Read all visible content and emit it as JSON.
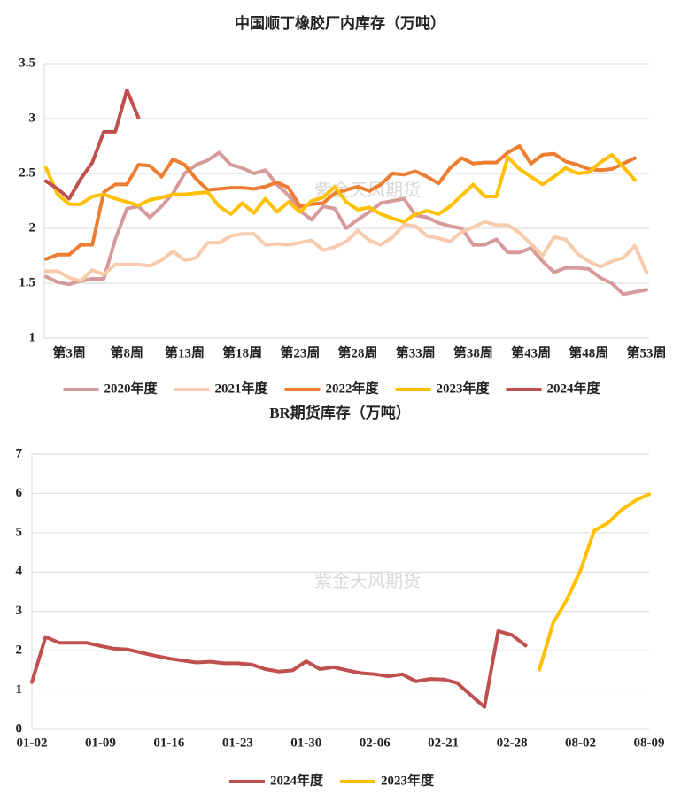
{
  "chart_data": [
    {
      "type": "line",
      "title": "中国顺丁橡胶厂内库存（万吨）",
      "watermark": "紫金天风期货",
      "categories": [
        null,
        null,
        "第3周",
        null,
        null,
        null,
        null,
        "第8周",
        null,
        null,
        null,
        null,
        "第13周",
        null,
        null,
        null,
        null,
        "第18周",
        null,
        null,
        null,
        null,
        "第23周",
        null,
        null,
        null,
        null,
        "第28周",
        null,
        null,
        null,
        null,
        "第33周",
        null,
        null,
        null,
        null,
        "第38周",
        null,
        null,
        null,
        null,
        "第43周",
        null,
        null,
        null,
        null,
        "第48周",
        null,
        null,
        null,
        null,
        "第53周"
      ],
      "ylim": [
        1,
        3.5
      ],
      "yticks": [
        1,
        1.5,
        2,
        2.5,
        3,
        3.5
      ],
      "grid": true,
      "legend": "bottom",
      "series": [
        {
          "name": "2020年度",
          "color": "#d69a9b",
          "values": [
            1.56,
            1.51,
            1.49,
            1.52,
            1.54,
            1.54,
            1.9,
            2.18,
            2.2,
            2.1,
            2.2,
            2.32,
            2.5,
            2.58,
            2.62,
            2.69,
            2.58,
            2.55,
            2.5,
            2.53,
            2.4,
            2.3,
            2.16,
            2.08,
            2.2,
            2.18,
            2.0,
            2.08,
            2.15,
            2.23,
            2.25,
            2.27,
            2.12,
            2.1,
            2.05,
            2.02,
            2.0,
            1.85,
            1.85,
            1.9,
            1.78,
            1.78,
            1.82,
            1.7,
            1.6,
            1.64,
            1.64,
            1.63,
            1.55,
            1.5,
            1.4,
            1.42,
            1.44
          ]
        },
        {
          "name": "2021年度",
          "color": "#f8cbad",
          "values": [
            1.61,
            1.61,
            1.55,
            1.52,
            1.62,
            1.58,
            1.67,
            1.67,
            1.67,
            1.66,
            1.71,
            1.79,
            1.71,
            1.73,
            1.87,
            1.87,
            1.93,
            1.95,
            1.95,
            1.85,
            1.86,
            1.85,
            1.87,
            1.89,
            1.8,
            1.83,
            1.88,
            1.98,
            1.89,
            1.85,
            1.92,
            2.03,
            2.02,
            1.93,
            1.91,
            1.88,
            1.97,
            2.01,
            2.06,
            2.03,
            2.03,
            1.96,
            1.86,
            1.75,
            1.92,
            1.9,
            1.77,
            1.7,
            1.65,
            1.7,
            1.73,
            1.84,
            1.6
          ]
        },
        {
          "name": "2022年度",
          "color": "#ed7d31",
          "values": [
            1.72,
            1.76,
            1.76,
            1.85,
            1.85,
            2.33,
            2.4,
            2.4,
            2.58,
            2.57,
            2.47,
            2.63,
            2.58,
            2.45,
            2.35,
            2.36,
            2.37,
            2.37,
            2.36,
            2.38,
            2.42,
            2.37,
            2.2,
            2.22,
            2.23,
            2.32,
            2.35,
            2.38,
            2.34,
            2.4,
            2.5,
            2.49,
            2.52,
            2.47,
            2.41,
            2.55,
            2.64,
            2.59,
            2.6,
            2.6,
            2.69,
            2.75,
            2.59,
            2.67,
            2.68,
            2.61,
            2.58,
            2.54,
            2.53,
            2.54,
            2.59,
            2.64,
            null
          ]
        },
        {
          "name": "2023年度",
          "color": "#ffc000",
          "values": [
            2.55,
            2.31,
            2.22,
            2.22,
            2.29,
            2.31,
            2.27,
            2.24,
            2.21,
            2.26,
            2.28,
            2.31,
            2.31,
            2.32,
            2.33,
            2.2,
            2.13,
            2.23,
            2.14,
            2.27,
            2.15,
            2.24,
            2.15,
            2.25,
            2.28,
            2.38,
            2.24,
            2.17,
            2.19,
            2.13,
            2.09,
            2.06,
            2.13,
            2.16,
            2.13,
            2.2,
            2.3,
            2.4,
            2.29,
            2.29,
            2.65,
            2.54,
            2.47,
            2.4,
            2.47,
            2.55,
            2.5,
            2.51,
            2.6,
            2.67,
            2.56,
            2.44,
            null
          ]
        },
        {
          "name": "2024年度",
          "color": "#c0504d",
          "values": [
            2.43,
            2.36,
            2.27,
            2.45,
            2.6,
            2.88,
            2.88,
            3.26,
            3.01,
            null,
            null,
            null,
            null,
            null,
            null,
            null,
            null,
            null,
            null,
            null,
            null,
            null,
            null,
            null,
            null,
            null,
            null,
            null,
            null,
            null,
            null,
            null,
            null,
            null,
            null,
            null,
            null,
            null,
            null,
            null,
            null,
            null,
            null,
            null,
            null,
            null,
            null,
            null,
            null,
            null,
            null,
            null,
            null
          ]
        }
      ]
    },
    {
      "type": "line",
      "title": "BR期货库存（万吨）",
      "watermark": "紫金天风期货",
      "categories": [
        "01-02",
        null,
        null,
        null,
        null,
        "01-09",
        null,
        null,
        null,
        null,
        "01-16",
        null,
        null,
        null,
        null,
        "01-23",
        null,
        null,
        null,
        null,
        "01-30",
        null,
        null,
        null,
        null,
        "02-06",
        null,
        null,
        null,
        null,
        "02-21",
        null,
        null,
        null,
        null,
        "02-28",
        null,
        null,
        null,
        null,
        "08-02",
        null,
        null,
        null,
        null,
        "08-09"
      ],
      "ylim": [
        0,
        7
      ],
      "yticks": [
        0,
        1,
        2,
        3,
        4,
        5,
        6,
        7
      ],
      "grid": true,
      "legend": "bottom",
      "series": [
        {
          "name": "2024年度",
          "color": "#c0504d",
          "values": [
            1.2,
            2.35,
            2.2,
            2.2,
            2.2,
            2.12,
            2.05,
            2.03,
            1.95,
            1.87,
            1.8,
            1.75,
            1.7,
            1.72,
            1.68,
            1.68,
            1.65,
            1.53,
            1.47,
            1.5,
            1.73,
            1.53,
            1.58,
            1.5,
            1.43,
            1.4,
            1.35,
            1.4,
            1.22,
            1.28,
            1.27,
            1.18,
            0.87,
            0.57,
            2.5,
            2.4,
            2.13,
            null,
            null,
            null,
            null,
            null,
            null,
            null,
            null,
            null
          ]
        },
        {
          "name": "2023年度",
          "color": "#ffc000",
          "values": [
            null,
            null,
            null,
            null,
            null,
            null,
            null,
            null,
            null,
            null,
            null,
            null,
            null,
            null,
            null,
            null,
            null,
            null,
            null,
            null,
            null,
            null,
            null,
            null,
            null,
            null,
            null,
            null,
            null,
            null,
            null,
            null,
            null,
            null,
            null,
            null,
            null,
            1.52,
            2.7,
            3.3,
            4.05,
            5.05,
            5.25,
            5.58,
            5.82,
            5.98
          ]
        }
      ]
    }
  ]
}
